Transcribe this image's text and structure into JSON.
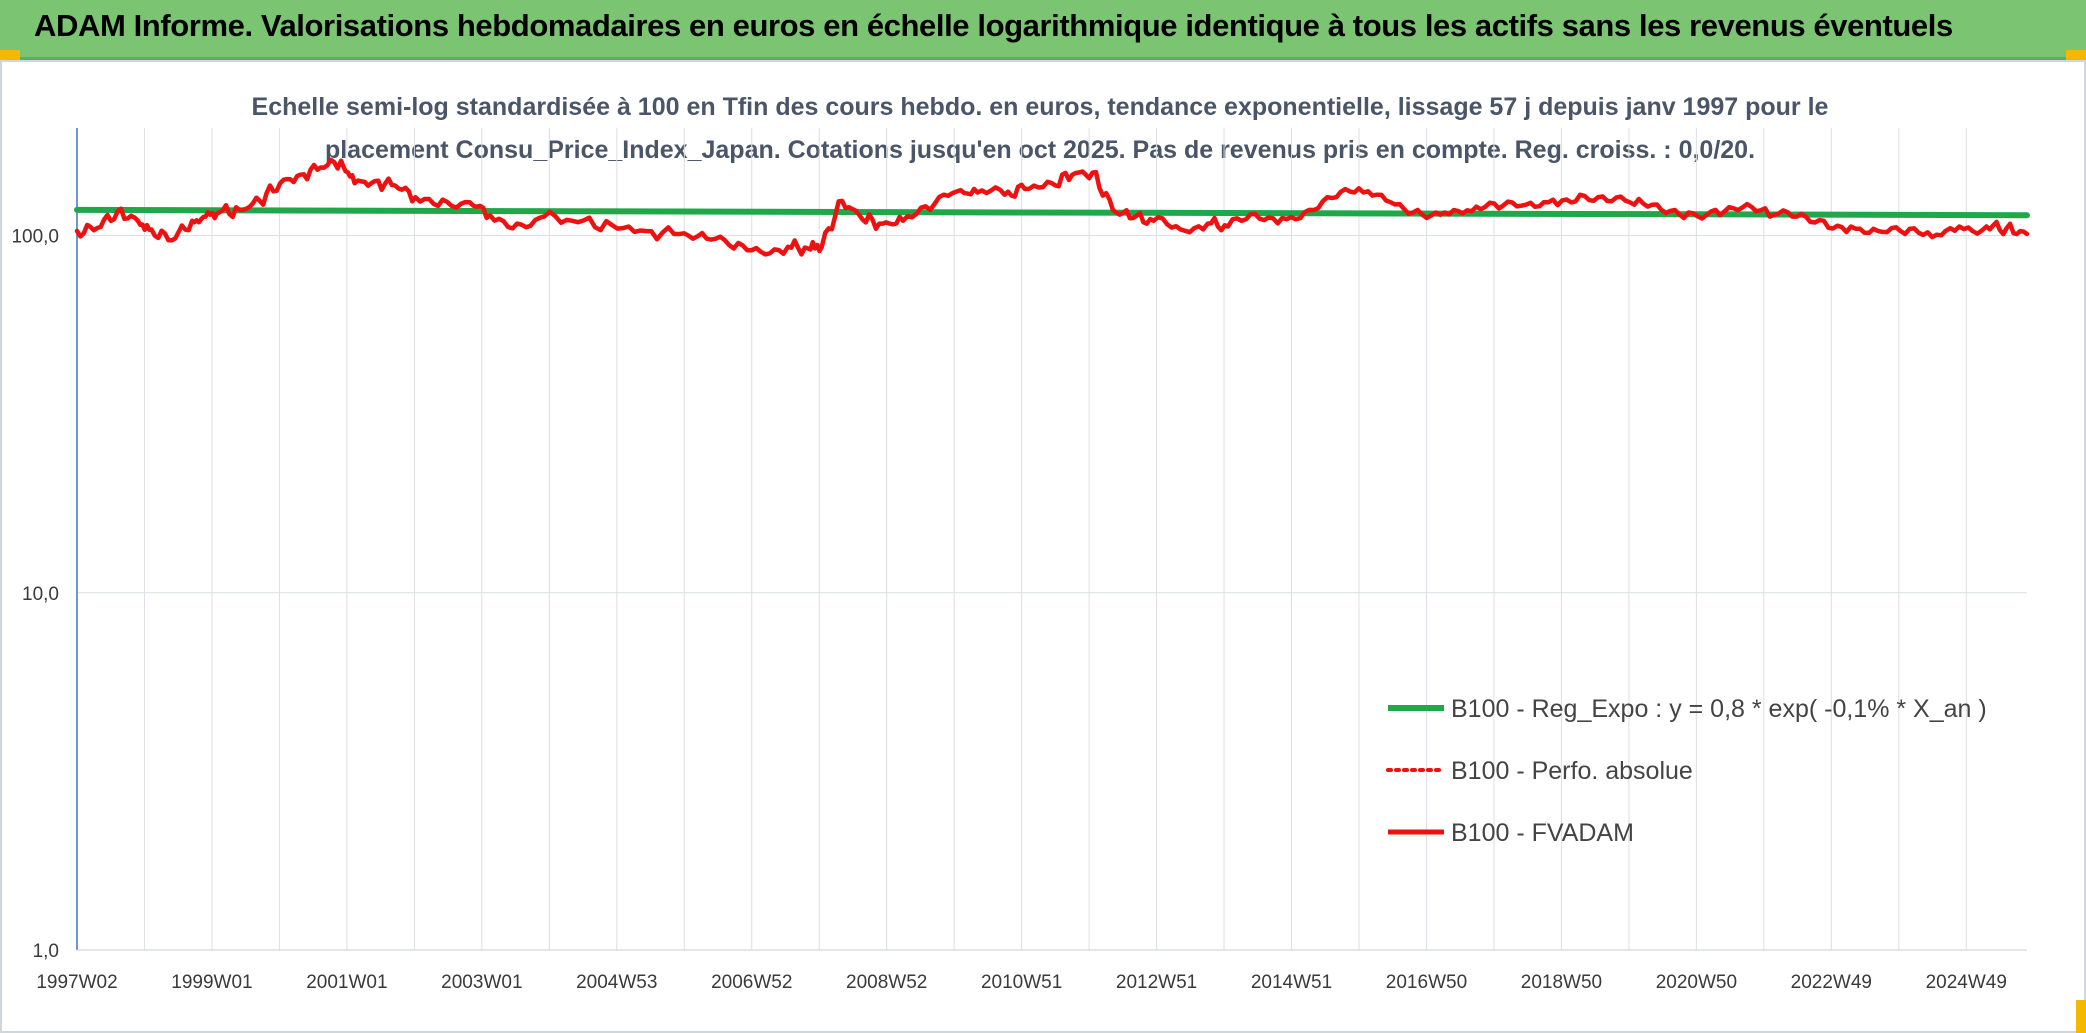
{
  "header": {
    "title": "ADAM Informe. Valorisations hebdomadaires en euros en échelle logarithmique identique à tous les actifs sans les revenus éventuels"
  },
  "chart_data": {
    "type": "line",
    "title_line1": "Echelle semi-log standardisée à 100 en Tfin des cours hebdo. en euros, tendance exponentielle, lissage 57 j depuis janv 1997 pour le",
    "title_line2": "placement Consu_Price_Index_Japan. Cotations jusqu'en oct 2025. Pas de revenus pris en compte. Reg. croiss. : 0,0/20.",
    "y_scale": "log",
    "ylim": [
      1,
      200
    ],
    "y_ticks": [
      {
        "value": 100,
        "label": "100,0"
      },
      {
        "value": 10,
        "label": "10,0"
      },
      {
        "value": 1,
        "label": "1,0"
      }
    ],
    "x_tick_labels": [
      "1997W02",
      "1999W01",
      "2001W01",
      "2003W01",
      "2004W53",
      "2006W52",
      "2008W52",
      "2010W51",
      "2012W51",
      "2014W51",
      "2016W50",
      "2018W50",
      "2020W50",
      "2022W49",
      "2024W49"
    ],
    "x_range_years": [
      1997.0,
      2025.8
    ],
    "grid": {
      "vertical": true,
      "horizontal": true
    },
    "legend_position": "bottom-right",
    "series": [
      {
        "name": "B100 - Reg_Expo : y = 0,8 * exp( -0,1% *  X_an )",
        "color": "#1ea84a",
        "style": "solid",
        "x": [
          1997.0,
          2025.8
        ],
        "y": [
          118,
          114
        ]
      },
      {
        "name": "B100 - Perfo. absolue",
        "color": "#ee1111",
        "style": "dotted",
        "x": [],
        "y": []
      },
      {
        "name": "B100 - FVADAM",
        "color": "#ee1111",
        "style": "solid",
        "x": [
          1997.0,
          1997.3,
          1997.6,
          1997.9,
          1998.1,
          1998.4,
          1998.7,
          1998.9,
          1999.1,
          1999.4,
          1999.7,
          2000.0,
          2000.3,
          2000.6,
          2000.9,
          2001.1,
          2001.4,
          2001.7,
          2002.0,
          2002.4,
          2002.8,
          2003.1,
          2003.5,
          2003.9,
          2004.4,
          2004.9,
          2005.4,
          2005.9,
          2006.3,
          2006.7,
          2007.1,
          2007.5,
          2007.8,
          2008.0,
          2008.3,
          2008.6,
          2008.9,
          2009.2,
          2009.6,
          2010.0,
          2010.3,
          2010.7,
          2011.0,
          2011.4,
          2011.7,
          2012.0,
          2012.3,
          2012.6,
          2012.9,
          2013.3,
          2013.7,
          2014.0,
          2014.4,
          2014.8,
          2015.2,
          2015.6,
          2016.0,
          2016.4,
          2016.8,
          2017.2,
          2017.6,
          2018.0,
          2018.4,
          2018.8,
          2019.2,
          2019.6,
          2020.0,
          2020.4,
          2020.8,
          2021.2,
          2021.6,
          2022.0,
          2022.4,
          2022.8,
          2023.2,
          2023.6,
          2024.0,
          2024.4,
          2024.8,
          2025.2,
          2025.5,
          2025.8
        ],
        "y": [
          103,
          105,
          117,
          110,
          104,
          97,
          110,
          113,
          116,
          118,
          125,
          140,
          148,
          155,
          162,
          140,
          142,
          138,
          128,
          126,
          124,
          114,
          108,
          113,
          109,
          107,
          103,
          101,
          98,
          92,
          90,
          93,
          92,
          93,
          125,
          111,
          108,
          110,
          118,
          133,
          132,
          130,
          135,
          140,
          148,
          150,
          118,
          112,
          110,
          104,
          108,
          106,
          115,
          112,
          118,
          128,
          132,
          124,
          118,
          116,
          117,
          119,
          122,
          126,
          130,
          125,
          122,
          118,
          116,
          118,
          120,
          113,
          113,
          110,
          106,
          103,
          101,
          99,
          106,
          106,
          105,
          101
        ]
      }
    ]
  }
}
